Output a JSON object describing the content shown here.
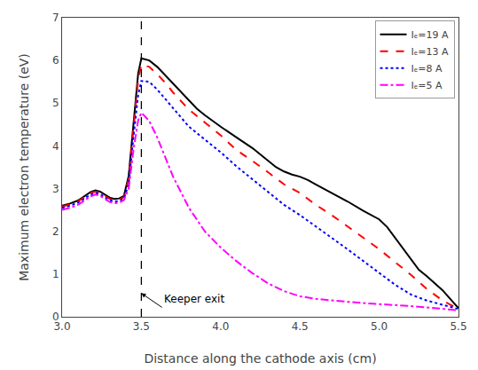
{
  "chart_data": {
    "type": "line",
    "xlabel": "Distance along the cathode axis (cm)",
    "ylabel": "Maximum electron temperature (eV)",
    "xlim": [
      3.0,
      5.5
    ],
    "ylim": [
      0,
      7
    ],
    "xticks": [
      {
        "value": 3.0,
        "label": "3.0"
      },
      3.5,
      {
        "value": 4.0,
        "label": "4.0"
      },
      4.5,
      {
        "value": 5.0,
        "label": "5.0"
      },
      5.5
    ],
    "yticks": [
      0,
      1,
      2,
      3,
      4,
      5,
      6,
      7
    ],
    "grid": false,
    "legend": "upper right",
    "vline": {
      "x": 3.5,
      "color": "black",
      "line_style": "dashed"
    },
    "annotations": [
      {
        "text": "Keeper exit",
        "x": 3.63,
        "y": 0.22,
        "arrow_x": 3.5,
        "arrow_y": 0.55
      }
    ],
    "series": [
      {
        "name": "Iₑ=19 A",
        "color": "black",
        "line_style": "solid",
        "x": [
          3.0,
          3.05,
          3.1,
          3.15,
          3.18,
          3.21,
          3.24,
          3.27,
          3.3,
          3.33,
          3.36,
          3.39,
          3.42,
          3.45,
          3.48,
          3.5,
          3.55,
          3.6,
          3.65,
          3.7,
          3.75,
          3.8,
          3.85,
          3.9,
          4.0,
          4.1,
          4.2,
          4.3,
          4.35,
          4.4,
          4.45,
          4.5,
          4.55,
          4.6,
          4.7,
          4.8,
          4.9,
          5.0,
          5.05,
          5.1,
          5.15,
          5.2,
          5.25,
          5.3,
          5.4,
          5.5
        ],
        "values": [
          2.6,
          2.65,
          2.72,
          2.85,
          2.92,
          2.96,
          2.93,
          2.86,
          2.79,
          2.76,
          2.77,
          2.83,
          3.3,
          4.5,
          5.7,
          6.05,
          6.0,
          5.85,
          5.65,
          5.45,
          5.25,
          5.05,
          4.87,
          4.72,
          4.45,
          4.2,
          3.95,
          3.65,
          3.5,
          3.4,
          3.33,
          3.28,
          3.2,
          3.1,
          2.9,
          2.7,
          2.48,
          2.28,
          2.1,
          1.85,
          1.6,
          1.35,
          1.1,
          0.95,
          0.62,
          0.2
        ]
      },
      {
        "name": "Iₑ=13 A",
        "color": "red",
        "line_style": "dashed",
        "x": [
          3.0,
          3.05,
          3.1,
          3.15,
          3.18,
          3.21,
          3.24,
          3.27,
          3.3,
          3.33,
          3.36,
          3.39,
          3.42,
          3.45,
          3.48,
          3.5,
          3.55,
          3.6,
          3.65,
          3.7,
          3.8,
          3.9,
          4.0,
          4.1,
          4.2,
          4.3,
          4.4,
          4.5,
          4.6,
          4.7,
          4.8,
          4.9,
          5.0,
          5.1,
          5.2,
          5.3,
          5.4,
          5.5
        ],
        "values": [
          2.58,
          2.63,
          2.7,
          2.82,
          2.9,
          2.93,
          2.9,
          2.83,
          2.76,
          2.73,
          2.74,
          2.8,
          3.22,
          4.4,
          5.55,
          5.9,
          5.85,
          5.68,
          5.48,
          5.25,
          4.85,
          4.55,
          4.25,
          3.9,
          3.65,
          3.38,
          3.1,
          2.9,
          2.62,
          2.38,
          2.12,
          1.85,
          1.58,
          1.28,
          0.98,
          0.65,
          0.38,
          0.18
        ]
      },
      {
        "name": "Iₑ=8 A",
        "color": "blue",
        "line_style": "dotted",
        "x": [
          3.0,
          3.05,
          3.1,
          3.15,
          3.18,
          3.21,
          3.24,
          3.27,
          3.3,
          3.33,
          3.36,
          3.39,
          3.42,
          3.45,
          3.48,
          3.5,
          3.55,
          3.6,
          3.65,
          3.7,
          3.8,
          3.9,
          4.0,
          4.1,
          4.2,
          4.3,
          4.4,
          4.5,
          4.6,
          4.7,
          4.8,
          4.9,
          5.0,
          5.1,
          5.2,
          5.3,
          5.4,
          5.5
        ],
        "values": [
          2.55,
          2.6,
          2.67,
          2.78,
          2.86,
          2.9,
          2.87,
          2.8,
          2.73,
          2.7,
          2.71,
          2.77,
          3.1,
          4.2,
          5.2,
          5.52,
          5.5,
          5.32,
          5.1,
          4.88,
          4.45,
          4.15,
          3.85,
          3.52,
          3.22,
          2.92,
          2.62,
          2.38,
          2.12,
          1.85,
          1.58,
          1.3,
          1.02,
          0.75,
          0.52,
          0.38,
          0.28,
          0.18
        ]
      },
      {
        "name": "Iₑ=5 A",
        "color": "magenta",
        "line_style": "dashdot",
        "x": [
          3.0,
          3.05,
          3.1,
          3.15,
          3.18,
          3.21,
          3.24,
          3.27,
          3.3,
          3.33,
          3.36,
          3.39,
          3.42,
          3.45,
          3.48,
          3.5,
          3.55,
          3.6,
          3.65,
          3.7,
          3.8,
          3.9,
          4.0,
          4.1,
          4.2,
          4.3,
          4.4,
          4.5,
          4.6,
          4.7,
          4.8,
          4.9,
          5.0,
          5.1,
          5.2,
          5.3,
          5.4,
          5.5
        ],
        "values": [
          2.5,
          2.55,
          2.62,
          2.74,
          2.82,
          2.86,
          2.83,
          2.76,
          2.69,
          2.66,
          2.67,
          2.73,
          3.0,
          3.9,
          4.6,
          4.78,
          4.58,
          4.2,
          3.75,
          3.28,
          2.55,
          2.0,
          1.62,
          1.3,
          1.02,
          0.78,
          0.6,
          0.48,
          0.42,
          0.38,
          0.35,
          0.32,
          0.3,
          0.28,
          0.25,
          0.22,
          0.18,
          0.15
        ]
      }
    ]
  }
}
